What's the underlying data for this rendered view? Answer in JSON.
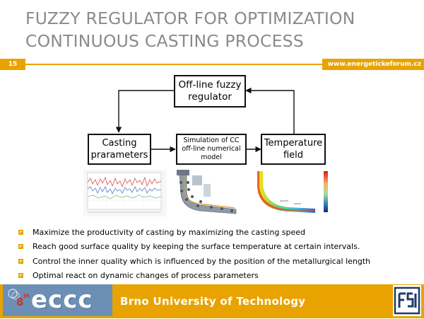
{
  "title": {
    "line1": "FUZZY REGULATOR FOR OPTIMIZATION",
    "line2": "CONTINUOUS CASTING PROCESS"
  },
  "slide_number": "15",
  "website": "www.energetickeforum.cz",
  "diagram": {
    "fuzzy_regulator": "Off-line fuzzy\nregulator",
    "casting_parameters": "Casting\nprarameters",
    "simulation": "Simulation of CC\noff-line numerical\nmodel",
    "temperature_field": "Temperature\nfield"
  },
  "bullets": [
    "Maximize the productivity of casting by maximizing the casting speed",
    "Reach good surface quality by keeping the surface temperature at certain intervals.",
    "Control the inner quality which is influenced by the position of the metallurgical length",
    "Optimal react on dynamic changes of process parameters"
  ],
  "footer": {
    "logo_sup": "th",
    "logo_num": "8",
    "logo_text": "eccc",
    "university": "Brno University of Technology"
  },
  "colors": {
    "accent": "#e8a300",
    "title_gray": "#8a8a8a",
    "logo_blue": "#6c8fb5"
  }
}
